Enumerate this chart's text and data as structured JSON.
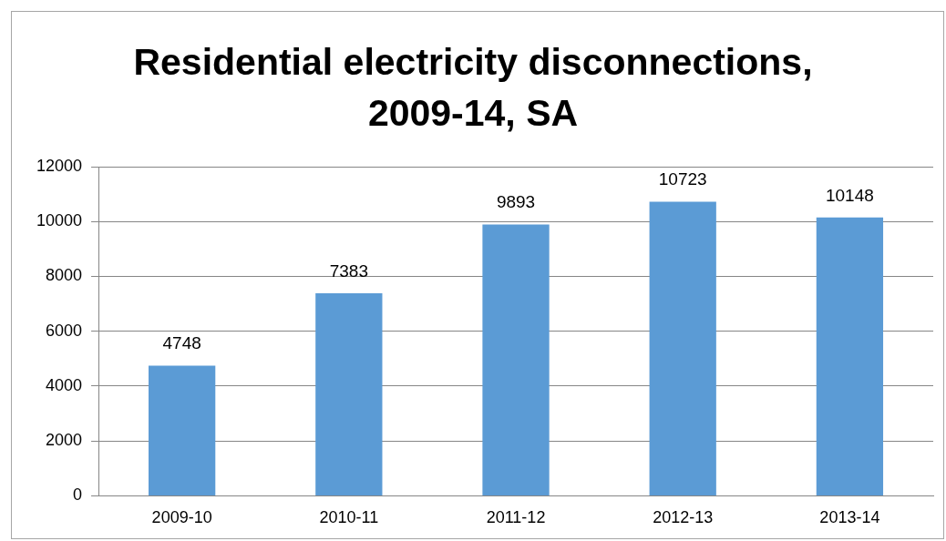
{
  "chart_data": {
    "type": "bar",
    "title": "Residential electricity disconnections, 2009-14, SA",
    "categories": [
      "2009-10",
      "2010-11",
      "2011-12",
      "2012-13",
      "2013-14"
    ],
    "values": [
      4748,
      7383,
      9893,
      10723,
      10148
    ],
    "color": "#5b9bd5",
    "ylim": [
      0,
      12000
    ],
    "yticks": [
      0,
      2000,
      4000,
      6000,
      8000,
      10000,
      12000
    ],
    "grid": "y",
    "data_labels": true,
    "legend": false
  }
}
